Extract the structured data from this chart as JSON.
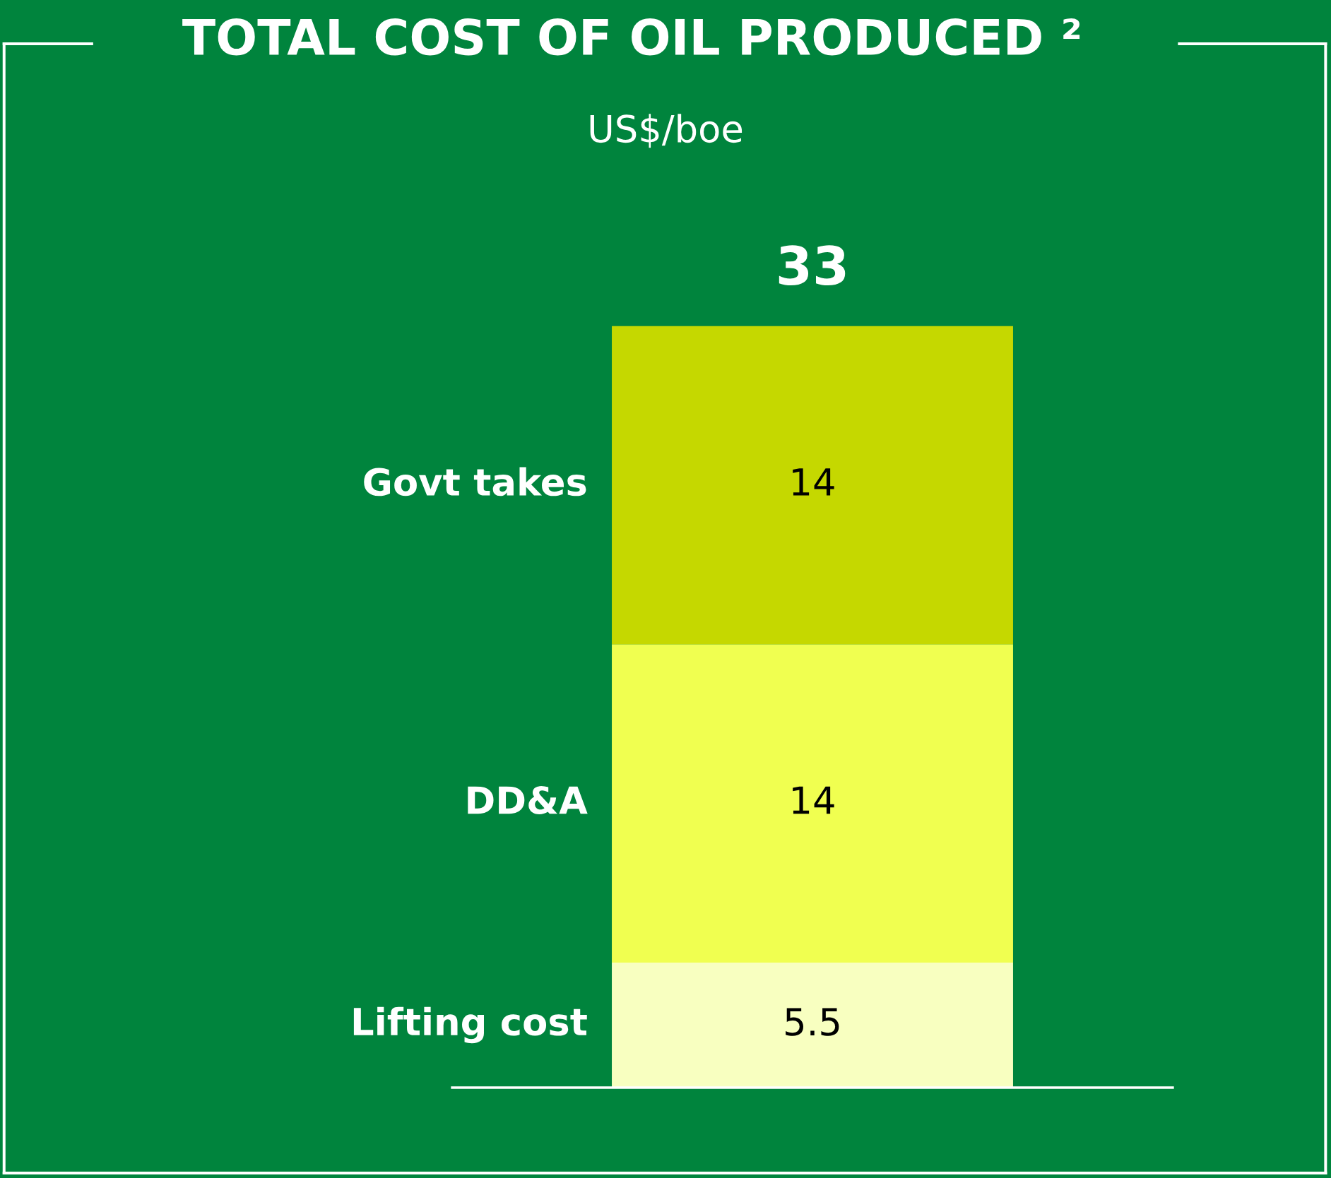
{
  "chart_data": {
    "type": "bar",
    "title": "TOTAL COST OF OIL PRODUCED ²",
    "subtitle": "US$/boe",
    "categories": [
      null
    ],
    "stacked": true,
    "data_labels": true,
    "totals": [
      "33"
    ],
    "series": [
      {
        "name": "Lifting cost",
        "color": "#f8ffc0",
        "values": [
          5.5
        ]
      },
      {
        "name": "DD&A",
        "color": "#f0ff50",
        "values": [
          14
        ]
      },
      {
        "name": "Govt takes",
        "color": "#c5d800",
        "values": [
          14
        ]
      }
    ]
  }
}
